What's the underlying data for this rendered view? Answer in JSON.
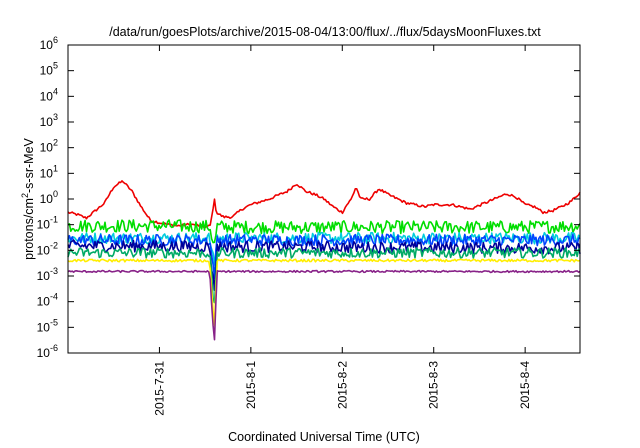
{
  "chart_data": {
    "type": "line",
    "title": "/data/run/goesPlots/archive/2015-08-04/13:00/flux/../flux/5daysMoonFluxes.txt",
    "xlabel": "Coordinated Universal Time (UTC)",
    "ylabel": {
      "base": "protons/cm",
      "sup": "2",
      "rest": "-s-sr-MeV"
    },
    "y_scale": "log",
    "ylim": [
      1e-06,
      1000000.0
    ],
    "xlim_days_from_2015_07_30_00": [
      0.0,
      5.6
    ],
    "grid": false,
    "legend": "none",
    "y_tick_labels": [
      {
        "value": 1e-06,
        "base": "10",
        "exp": "-6"
      },
      {
        "value": 1e-05,
        "base": "10",
        "exp": "-5"
      },
      {
        "value": 0.0001,
        "base": "10",
        "exp": "-4"
      },
      {
        "value": 0.001,
        "base": "10",
        "exp": "-3"
      },
      {
        "value": 0.01,
        "base": "10",
        "exp": "-2"
      },
      {
        "value": 0.1,
        "base": "10",
        "exp": "-1"
      },
      {
        "value": 1.0,
        "base": "10",
        "exp": "0"
      },
      {
        "value": 10.0,
        "base": "10",
        "exp": "1"
      },
      {
        "value": 100.0,
        "base": "10",
        "exp": "2"
      },
      {
        "value": 1000.0,
        "base": "10",
        "exp": "3"
      },
      {
        "value": 10000.0,
        "base": "10",
        "exp": "4"
      },
      {
        "value": 100000.0,
        "base": "10",
        "exp": "5"
      },
      {
        "value": 1000000.0,
        "base": "10",
        "exp": "6"
      }
    ],
    "x_tick_labels": [
      {
        "label": "2015-7-31",
        "day": 1.0
      },
      {
        "label": "2015-8-1",
        "day": 2.0
      },
      {
        "label": "2015-8-2",
        "day": 3.0
      },
      {
        "label": "2015-8-3",
        "day": 4.0
      },
      {
        "label": "2015-8-4",
        "day": 5.0
      }
    ],
    "series": [
      {
        "color": "#ee0000",
        "noise": 0.1,
        "drop": 0.6,
        "points": [
          [
            0.0,
            0.3
          ],
          [
            0.1,
            0.25
          ],
          [
            0.2,
            0.18
          ],
          [
            0.3,
            0.35
          ],
          [
            0.4,
            0.7
          ],
          [
            0.5,
            3.0
          ],
          [
            0.6,
            5.0
          ],
          [
            0.7,
            2.0
          ],
          [
            0.8,
            0.5
          ],
          [
            0.9,
            0.15
          ],
          [
            1.0,
            0.12
          ],
          [
            1.1,
            0.1
          ],
          [
            1.2,
            0.09
          ],
          [
            1.3,
            0.1
          ],
          [
            1.4,
            0.1
          ],
          [
            1.5,
            0.08
          ],
          [
            1.56,
            0.09
          ],
          [
            1.6,
            0.6
          ],
          [
            1.62,
            0.3
          ],
          [
            1.7,
            0.2
          ],
          [
            1.8,
            0.2
          ],
          [
            1.9,
            0.4
          ],
          [
            2.0,
            0.6
          ],
          [
            2.2,
            1.0
          ],
          [
            2.4,
            2.0
          ],
          [
            2.5,
            4.0
          ],
          [
            2.6,
            2.0
          ],
          [
            2.7,
            1.5
          ],
          [
            2.8,
            1.0
          ],
          [
            2.9,
            0.5
          ],
          [
            3.0,
            0.3
          ],
          [
            3.05,
            0.6
          ],
          [
            3.1,
            1.0
          ],
          [
            3.15,
            3.0
          ],
          [
            3.2,
            1.0
          ],
          [
            3.3,
            1.0
          ],
          [
            3.4,
            2.5
          ],
          [
            3.5,
            1.5
          ],
          [
            3.7,
            0.7
          ],
          [
            3.9,
            0.5
          ],
          [
            4.0,
            0.6
          ],
          [
            4.2,
            0.6
          ],
          [
            4.4,
            0.4
          ],
          [
            4.6,
            0.8
          ],
          [
            4.8,
            1.6
          ],
          [
            4.9,
            1.2
          ],
          [
            5.0,
            0.6
          ],
          [
            5.1,
            0.5
          ],
          [
            5.2,
            0.3
          ],
          [
            5.3,
            0.35
          ],
          [
            5.4,
            0.5
          ],
          [
            5.5,
            0.8
          ],
          [
            5.6,
            1.8
          ]
        ]
      },
      {
        "color": "#00dd00",
        "noise": 0.5,
        "drop": 6,
        "points": [
          [
            0.0,
            0.09
          ],
          [
            1.0,
            0.09
          ],
          [
            2.0,
            0.08
          ],
          [
            3.0,
            0.08
          ],
          [
            4.0,
            0.08
          ],
          [
            5.0,
            0.08
          ],
          [
            5.6,
            0.09
          ]
        ]
      },
      {
        "color": "#00ccdd",
        "noise": 0.45,
        "drop": 12,
        "points": [
          [
            0.0,
            0.03
          ],
          [
            5.6,
            0.03
          ]
        ]
      },
      {
        "color": "#0044ff",
        "noise": 0.45,
        "drop": 25,
        "points": [
          [
            0.0,
            0.025
          ],
          [
            5.6,
            0.025
          ]
        ]
      },
      {
        "color": "#000099",
        "noise": 0.45,
        "drop": 60,
        "points": [
          [
            0.0,
            0.015
          ],
          [
            5.6,
            0.012
          ]
        ]
      },
      {
        "color": "#00aa66",
        "noise": 0.4,
        "drop": 200,
        "points": [
          [
            0.0,
            0.008
          ],
          [
            5.6,
            0.008
          ]
        ]
      },
      {
        "color": "#ffee00",
        "noise": 0.1,
        "drop": 500,
        "points": [
          [
            0.0,
            0.004
          ],
          [
            5.6,
            0.004
          ]
        ]
      },
      {
        "color": "#882288",
        "noise": 0.07,
        "drop": 800,
        "points": [
          [
            0.0,
            0.0015
          ],
          [
            5.6,
            0.0015
          ]
        ]
      }
    ],
    "dip": {
      "start_day": 1.55,
      "min_day": 1.6,
      "end_day": 1.63
    }
  }
}
